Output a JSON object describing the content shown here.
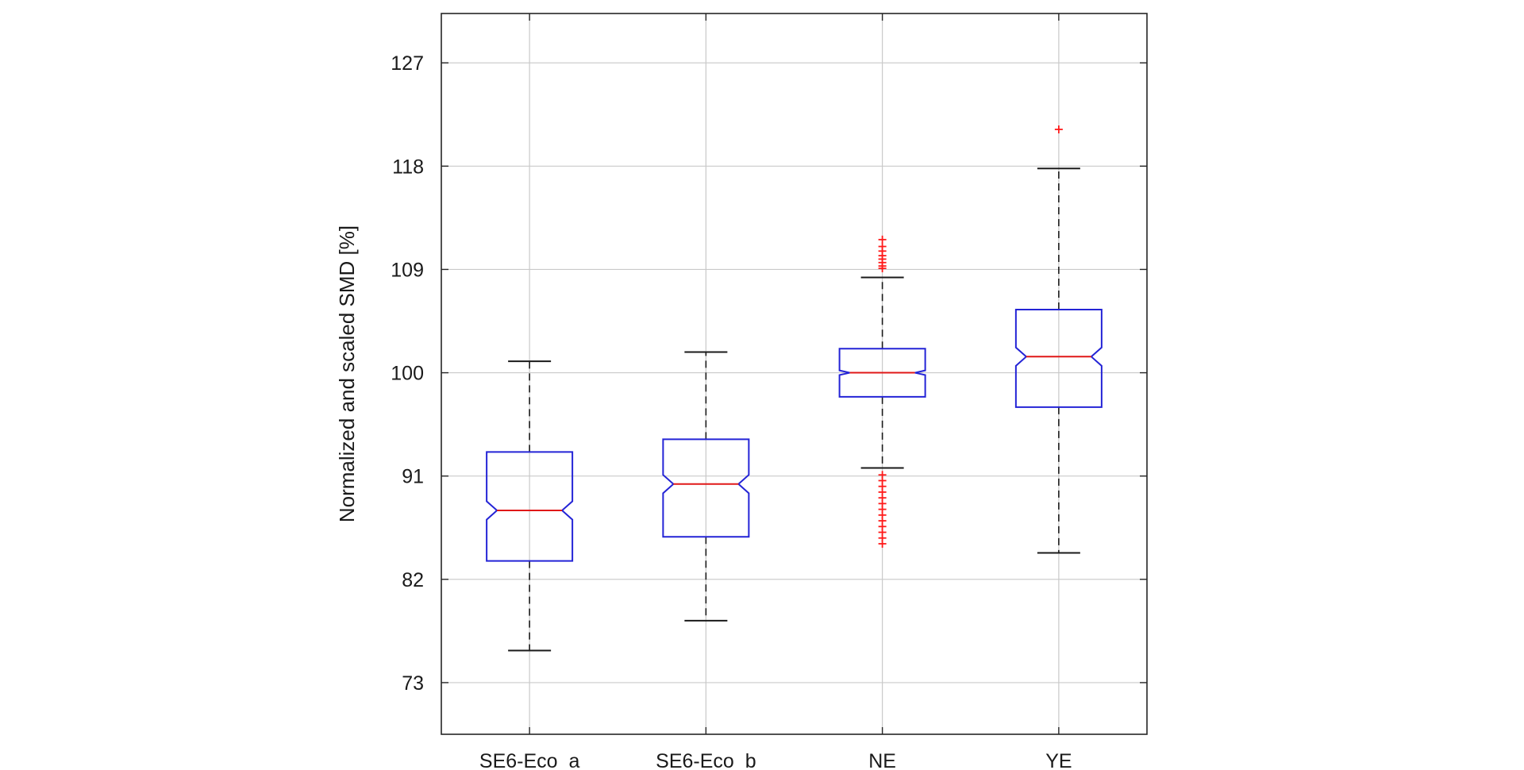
{
  "chart_data": {
    "type": "box",
    "title": "",
    "xlabel": "",
    "ylabel": "Normalized and scaled SMD [%]",
    "ylim": [
      68.5,
      131.3
    ],
    "yticks": [
      73,
      82,
      91,
      100,
      109,
      118,
      127
    ],
    "ytick_labels": [
      "73",
      "82",
      "91",
      "100",
      "109",
      "118",
      "127"
    ],
    "grid": true,
    "notched": true,
    "categories": [
      "SE6-Eco_a",
      "SE6-Eco_b",
      "NE",
      "YE"
    ],
    "boxes": [
      {
        "category": "SE6-Eco_a",
        "whisker_low": 75.8,
        "q1": 83.6,
        "median": 88.0,
        "q3": 93.1,
        "whisker_high": 101.0,
        "notch_low": 87.2,
        "notch_high": 88.8,
        "outliers": []
      },
      {
        "category": "SE6-Eco_b",
        "whisker_low": 78.4,
        "q1": 85.7,
        "median": 90.3,
        "q3": 94.2,
        "whisker_high": 101.8,
        "notch_low": 89.5,
        "notch_high": 91.1,
        "outliers": []
      },
      {
        "category": "NE",
        "whisker_low": 91.7,
        "q1": 97.9,
        "median": 100.0,
        "q3": 102.1,
        "whisker_high": 108.3,
        "notch_low": 99.8,
        "notch_high": 100.2,
        "outliers": [
          109.1,
          109.3,
          109.6,
          109.9,
          110.2,
          110.6,
          111.0,
          111.6,
          91.1,
          90.6,
          90.1,
          89.6,
          89.1,
          88.6,
          88.1,
          87.6,
          87.1,
          86.6,
          86.1,
          85.6,
          85.1
        ]
      },
      {
        "category": "YE",
        "whisker_low": 84.3,
        "q1": 97.0,
        "median": 101.4,
        "q3": 105.5,
        "whisker_high": 117.8,
        "notch_low": 100.6,
        "notch_high": 102.2,
        "outliers": [
          121.2
        ]
      }
    ],
    "colors": {
      "box": "#2424d6",
      "median": "#e01818",
      "whisker": "#1a1a1a",
      "outlier": "#ff1a1a",
      "grid": "#c9c9c9",
      "axis": "#262626"
    }
  }
}
